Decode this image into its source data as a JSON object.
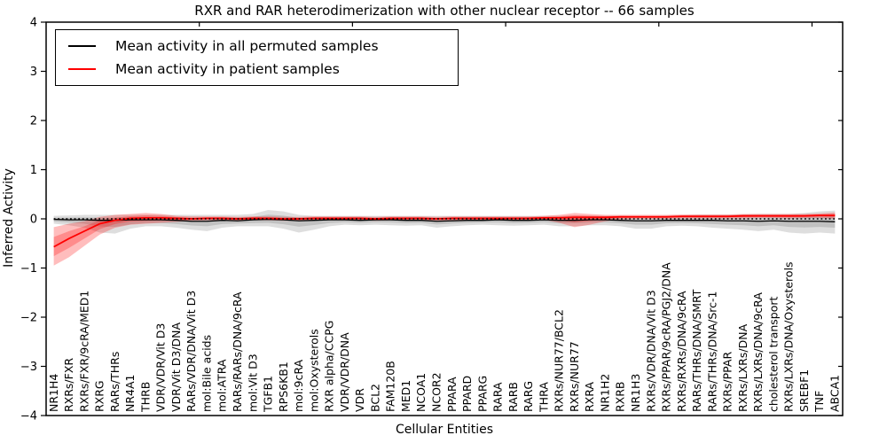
{
  "chart_data": {
    "type": "line",
    "title": "RXR and RAR heterodimerization with other nuclear receptor -- 66 samples",
    "xlabel": "Cellular Entities",
    "ylabel": "Inferred Activity",
    "ylim": [
      -4,
      4
    ],
    "y_ticks": [
      4,
      3,
      2,
      1,
      0,
      -1,
      -2,
      -3,
      -4
    ],
    "grid": false,
    "legend_position": "upper left",
    "reference_lines": [
      {
        "y": 0,
        "style": "dotted",
        "color": "#000000"
      }
    ],
    "categories": [
      "NR1H4",
      "RXRs/FXR",
      "RXRs/FXR/9cRA/MED1",
      "RXRG",
      "RARs/THRs",
      "NR4A1",
      "THRB",
      "VDR/VDR/Vit D3",
      "VDR/Vit D3/DNA",
      "RARs/VDR/DNA/Vit D3",
      "mol:Bile acids",
      "mol:ATRA",
      "RARs/RARs/DNA/9cRA",
      "mol:Vit D3",
      "TGFB1",
      "RPS6KB1",
      "mol:9cRA",
      "mol:Oxysterols",
      "RXR alpha/CCPG",
      "VDR/VDR/DNA",
      "VDR",
      "BCL2",
      "FAM120B",
      "MED1",
      "NCOA1",
      "NCOR2",
      "PPARA",
      "PPARD",
      "PPARG",
      "RARA",
      "RARB",
      "RARG",
      "THRA",
      "RXRs/NUR77/BCL2",
      "RXRs/NUR77",
      "RXRA",
      "NR1H2",
      "RXRB",
      "NR1H3",
      "RXRs/VDR/DNA/Vit D3",
      "RXRs/PPAR/9cRA/PGJ2/DNA",
      "RXRs/RXRs/DNA/9cRA",
      "RARs/THRs/DNA/SMRT",
      "RARs/THRs/DNA/Src-1",
      "RXRs/PPAR",
      "RXRs/LXRs/DNA",
      "RXRs/LXRs/DNA/9cRA",
      "cholesterol transport",
      "RXRs/LXRs/DNA/Oxysterols",
      "SREBF1",
      "TNF",
      "ABCA1"
    ],
    "series": [
      {
        "name": "Mean activity in all permuted samples",
        "color": "#000000",
        "band_color": "rgba(0,0,0,0.13)",
        "values": [
          -0.01,
          -0.02,
          -0.02,
          -0.03,
          -0.03,
          -0.02,
          -0.02,
          -0.02,
          -0.03,
          -0.05,
          -0.05,
          -0.03,
          -0.04,
          -0.02,
          -0.01,
          -0.02,
          -0.04,
          -0.03,
          -0.02,
          -0.02,
          -0.03,
          -0.02,
          -0.02,
          -0.03,
          -0.03,
          -0.05,
          -0.04,
          -0.03,
          -0.03,
          -0.02,
          -0.03,
          -0.03,
          -0.02,
          -0.03,
          -0.03,
          -0.02,
          -0.02,
          -0.03,
          -0.04,
          -0.04,
          -0.03,
          -0.03,
          -0.03,
          -0.03,
          -0.04,
          -0.04,
          -0.05,
          -0.04,
          -0.05,
          -0.05,
          -0.05,
          -0.06
        ],
        "band_lo": [
          -0.1,
          -0.13,
          -0.18,
          -0.28,
          -0.3,
          -0.2,
          -0.15,
          -0.15,
          -0.18,
          -0.22,
          -0.25,
          -0.18,
          -0.15,
          -0.15,
          -0.15,
          -0.2,
          -0.28,
          -0.22,
          -0.15,
          -0.12,
          -0.13,
          -0.12,
          -0.13,
          -0.14,
          -0.13,
          -0.18,
          -0.15,
          -0.13,
          -0.12,
          -0.13,
          -0.14,
          -0.13,
          -0.12,
          -0.15,
          -0.15,
          -0.13,
          -0.13,
          -0.15,
          -0.2,
          -0.2,
          -0.15,
          -0.14,
          -0.15,
          -0.18,
          -0.2,
          -0.22,
          -0.25,
          -0.22,
          -0.28,
          -0.3,
          -0.28,
          -0.3
        ],
        "band_hi": [
          0.06,
          0.07,
          0.08,
          0.08,
          0.08,
          0.08,
          0.08,
          0.08,
          0.08,
          0.08,
          0.08,
          0.08,
          0.08,
          0.1,
          0.18,
          0.15,
          0.08,
          0.06,
          0.06,
          0.06,
          0.06,
          0.06,
          0.06,
          0.06,
          0.06,
          0.06,
          0.06,
          0.06,
          0.06,
          0.06,
          0.06,
          0.06,
          0.06,
          0.06,
          0.06,
          0.06,
          0.06,
          0.06,
          0.05,
          0.05,
          0.06,
          0.07,
          0.08,
          0.08,
          0.08,
          0.09,
          0.1,
          0.1,
          0.1,
          0.12,
          0.15,
          0.17
        ]
      },
      {
        "name": "Mean activity in patient samples",
        "color": "#ff0000",
        "band_color": "rgba(255,0,0,0.26)",
        "values": [
          -0.57,
          -0.4,
          -0.25,
          -0.1,
          -0.03,
          0.01,
          0.02,
          0.02,
          0.01,
          0.0,
          0.01,
          0.01,
          0.0,
          0.01,
          0.01,
          0.0,
          0.0,
          0.01,
          0.01,
          0.01,
          0.01,
          0.0,
          0.01,
          0.01,
          0.01,
          0.0,
          0.01,
          0.01,
          0.01,
          0.01,
          0.01,
          0.01,
          0.02,
          0.02,
          0.03,
          0.03,
          0.03,
          0.04,
          0.04,
          0.04,
          0.04,
          0.05,
          0.05,
          0.05,
          0.05,
          0.06,
          0.06,
          0.06,
          0.06,
          0.06,
          0.07,
          0.07
        ],
        "band_lo": [
          -0.95,
          -0.78,
          -0.55,
          -0.32,
          -0.18,
          -0.12,
          -0.1,
          -0.08,
          -0.06,
          -0.04,
          -0.03,
          -0.03,
          -0.04,
          -0.03,
          -0.03,
          -0.04,
          -0.04,
          -0.03,
          -0.03,
          -0.03,
          -0.03,
          -0.04,
          -0.03,
          -0.03,
          -0.03,
          -0.04,
          -0.03,
          -0.03,
          -0.03,
          -0.03,
          -0.03,
          -0.02,
          -0.02,
          -0.08,
          -0.17,
          -0.12,
          -0.05,
          -0.01,
          0.0,
          0.0,
          0.0,
          0.01,
          0.01,
          0.01,
          0.01,
          0.01,
          0.02,
          0.02,
          0.01,
          0.02,
          0.02,
          0.0
        ],
        "band_hi": [
          -0.17,
          -0.1,
          -0.05,
          0.04,
          0.08,
          0.1,
          0.12,
          0.1,
          0.06,
          0.05,
          0.05,
          0.05,
          0.04,
          0.05,
          0.05,
          0.04,
          0.04,
          0.05,
          0.05,
          0.05,
          0.05,
          0.04,
          0.05,
          0.05,
          0.05,
          0.04,
          0.05,
          0.05,
          0.05,
          0.05,
          0.05,
          0.05,
          0.06,
          0.08,
          0.12,
          0.1,
          0.08,
          0.08,
          0.08,
          0.08,
          0.08,
          0.09,
          0.09,
          0.09,
          0.09,
          0.1,
          0.1,
          0.1,
          0.1,
          0.1,
          0.11,
          0.13
        ]
      }
    ]
  },
  "legend": {
    "items": [
      {
        "label": "Mean activity in all permuted samples",
        "color": "#000000"
      },
      {
        "label": "Mean activity in patient samples",
        "color": "#ff0000"
      }
    ]
  },
  "colors": {
    "axis": "#000000",
    "background": "#ffffff",
    "permuted_line": "#000000",
    "patient_line": "#ff0000"
  }
}
